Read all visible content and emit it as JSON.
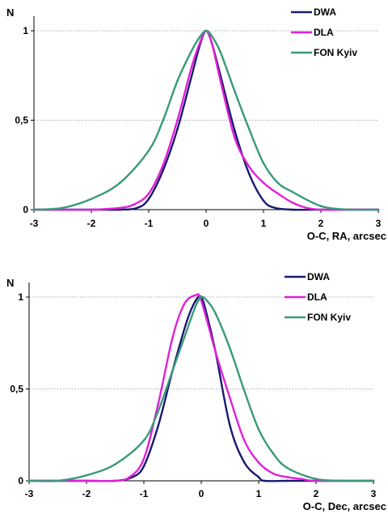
{
  "colors": {
    "DWA": "#1a1a6e",
    "DLA": "#e020d8",
    "FON Kyiv": "#3a9a7a",
    "grid": "#9aa8b8",
    "axis": "#000000"
  },
  "chart_data": [
    {
      "type": "line",
      "ylabel": "N",
      "xlabel": "O-C, RA, arcsec",
      "xlim": [
        -3,
        3
      ],
      "ylim": [
        0,
        1
      ],
      "xticks": [
        "-3",
        "-2",
        "-1",
        "0",
        "1",
        "2",
        "3"
      ],
      "yticks": [
        "0",
        "0,5",
        "1"
      ],
      "grid": "dotted horizontal at 0.5 and 1",
      "legend": {
        "position": "top-right",
        "entries": [
          "DWA",
          "DLA",
          "FON Kyiv"
        ]
      },
      "series": [
        {
          "name": "DWA",
          "x": [
            -3,
            -2.5,
            -2,
            -1.5,
            -1.2,
            -1,
            -0.75,
            -0.5,
            -0.25,
            -0.1,
            0,
            0.1,
            0.25,
            0.5,
            0.75,
            1,
            1.2,
            1.5,
            2,
            2.5,
            3
          ],
          "y": [
            0,
            0,
            0,
            0,
            0.01,
            0.06,
            0.22,
            0.45,
            0.75,
            0.93,
            1.0,
            0.93,
            0.75,
            0.44,
            0.2,
            0.05,
            0.01,
            0,
            0,
            0,
            0
          ]
        },
        {
          "name": "DLA",
          "x": [
            -3,
            -2.5,
            -2,
            -1.5,
            -1.25,
            -1,
            -0.75,
            -0.5,
            -0.25,
            -0.1,
            0,
            0.1,
            0.25,
            0.5,
            0.75,
            1,
            1.25,
            1.5,
            1.75,
            2,
            2.5,
            3
          ],
          "y": [
            0,
            0,
            0,
            0.01,
            0.03,
            0.09,
            0.25,
            0.5,
            0.8,
            0.94,
            1.0,
            0.93,
            0.72,
            0.4,
            0.24,
            0.15,
            0.09,
            0.04,
            0.01,
            0,
            0,
            0
          ]
        },
        {
          "name": "FON Kyiv",
          "x": [
            -3,
            -2.5,
            -2,
            -1.5,
            -1,
            -0.75,
            -0.5,
            -0.25,
            -0.1,
            0,
            0.1,
            0.25,
            0.5,
            0.75,
            1,
            1.25,
            1.5,
            2,
            2.5,
            3
          ],
          "y": [
            0,
            0.01,
            0.06,
            0.15,
            0.33,
            0.5,
            0.72,
            0.89,
            0.97,
            1.0,
            0.97,
            0.88,
            0.66,
            0.45,
            0.26,
            0.15,
            0.1,
            0.02,
            0,
            0
          ]
        }
      ]
    },
    {
      "type": "line",
      "ylabel": "N",
      "xlabel": "O-C, Dec, arcsec",
      "xlim": [
        -3,
        3
      ],
      "ylim": [
        0,
        1
      ],
      "xticks": [
        "-3",
        "-2",
        "-1",
        "0",
        "1",
        "2",
        "3"
      ],
      "yticks": [
        "0",
        "0,5",
        "1"
      ],
      "grid": "dotted horizontal at 0.5 and 1",
      "legend": {
        "position": "top-right",
        "entries": [
          "DWA",
          "DLA",
          "FON  Kyiv"
        ]
      },
      "series": [
        {
          "name": "DWA",
          "x": [
            -3,
            -2,
            -1.5,
            -1.2,
            -1,
            -0.75,
            -0.5,
            -0.25,
            -0.1,
            0,
            0.1,
            0.25,
            0.5,
            0.75,
            1,
            1.1,
            1.5,
            2,
            3
          ],
          "y": [
            0,
            0,
            0,
            0.02,
            0.08,
            0.3,
            0.6,
            0.87,
            0.98,
            1.0,
            0.9,
            0.7,
            0.3,
            0.1,
            0.02,
            0,
            0,
            0,
            0
          ]
        },
        {
          "name": "DLA",
          "x": [
            -3,
            -2,
            -1.5,
            -1.25,
            -1,
            -0.75,
            -0.5,
            -0.3,
            -0.1,
            0,
            0.25,
            0.5,
            0.75,
            1,
            1.25,
            1.5,
            1.75,
            2,
            3
          ],
          "y": [
            0,
            0,
            0,
            0.02,
            0.12,
            0.42,
            0.78,
            0.96,
            1.01,
            0.98,
            0.7,
            0.45,
            0.22,
            0.1,
            0.04,
            0.02,
            0.01,
            0,
            0
          ]
        },
        {
          "name": "FON  Kyiv",
          "x": [
            -3,
            -2.5,
            -2,
            -1.5,
            -1,
            -0.75,
            -0.5,
            -0.25,
            -0.1,
            0,
            0.1,
            0.25,
            0.5,
            0.75,
            1,
            1.25,
            1.5,
            2,
            2.5,
            3
          ],
          "y": [
            0,
            0,
            0.03,
            0.09,
            0.22,
            0.38,
            0.6,
            0.82,
            0.95,
            1.0,
            0.98,
            0.91,
            0.72,
            0.49,
            0.28,
            0.15,
            0.07,
            0.01,
            0,
            0
          ]
        }
      ]
    }
  ]
}
